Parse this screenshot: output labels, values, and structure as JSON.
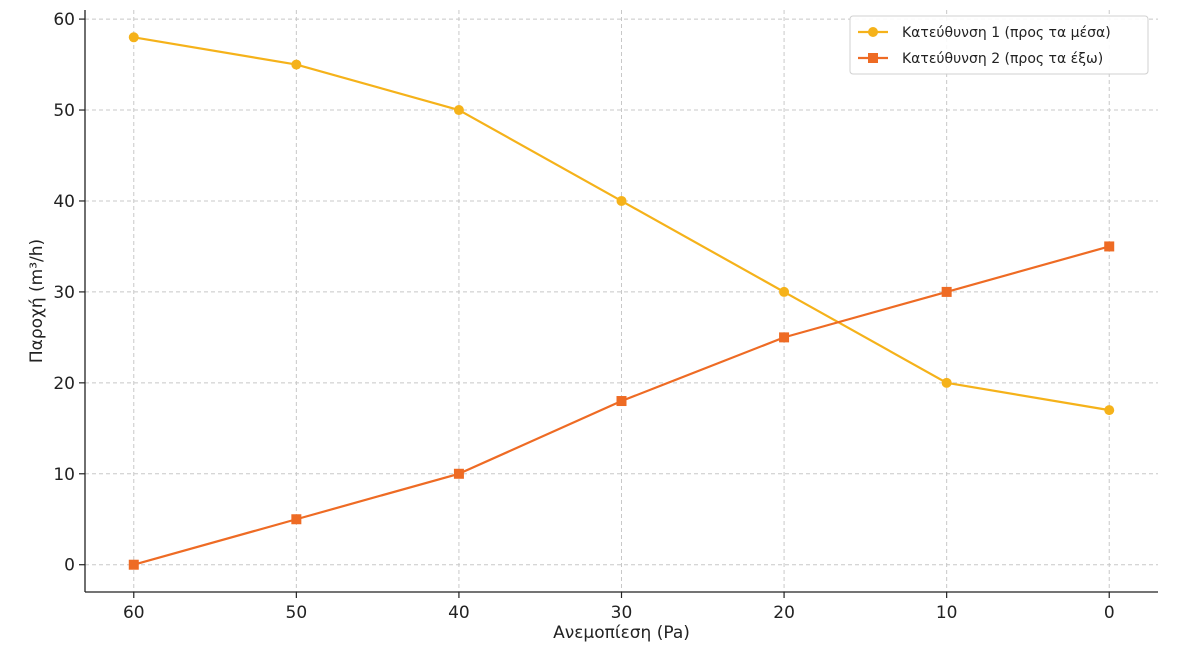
{
  "chart_data": {
    "type": "line",
    "title": "",
    "xlabel": "Ανεμοπίεση (Pa)",
    "ylabel": "Παροχή (m³/h)",
    "x": [
      60,
      50,
      40,
      30,
      20,
      10,
      0
    ],
    "x_inverted": true,
    "xticks": [
      "60",
      "50",
      "40",
      "30",
      "20",
      "10",
      "0"
    ],
    "xlim": [
      63,
      -3
    ],
    "yticks": [
      "0",
      "10",
      "20",
      "30",
      "40",
      "50",
      "60"
    ],
    "ylim": [
      -3,
      61
    ],
    "grid": true,
    "legend_position": "top-right",
    "series": [
      {
        "name": "Κατεύθυνση 1 (προς τα μέσα)",
        "marker": "circle",
        "color": "#f5b21a",
        "values": [
          58,
          55,
          50,
          40,
          30,
          20,
          17
        ]
      },
      {
        "name": "Κατεύθυνση 2 (προς τα έξω)",
        "marker": "square",
        "color": "#ee6b24",
        "values": [
          0,
          5,
          10,
          18,
          25,
          30,
          35
        ]
      }
    ]
  }
}
